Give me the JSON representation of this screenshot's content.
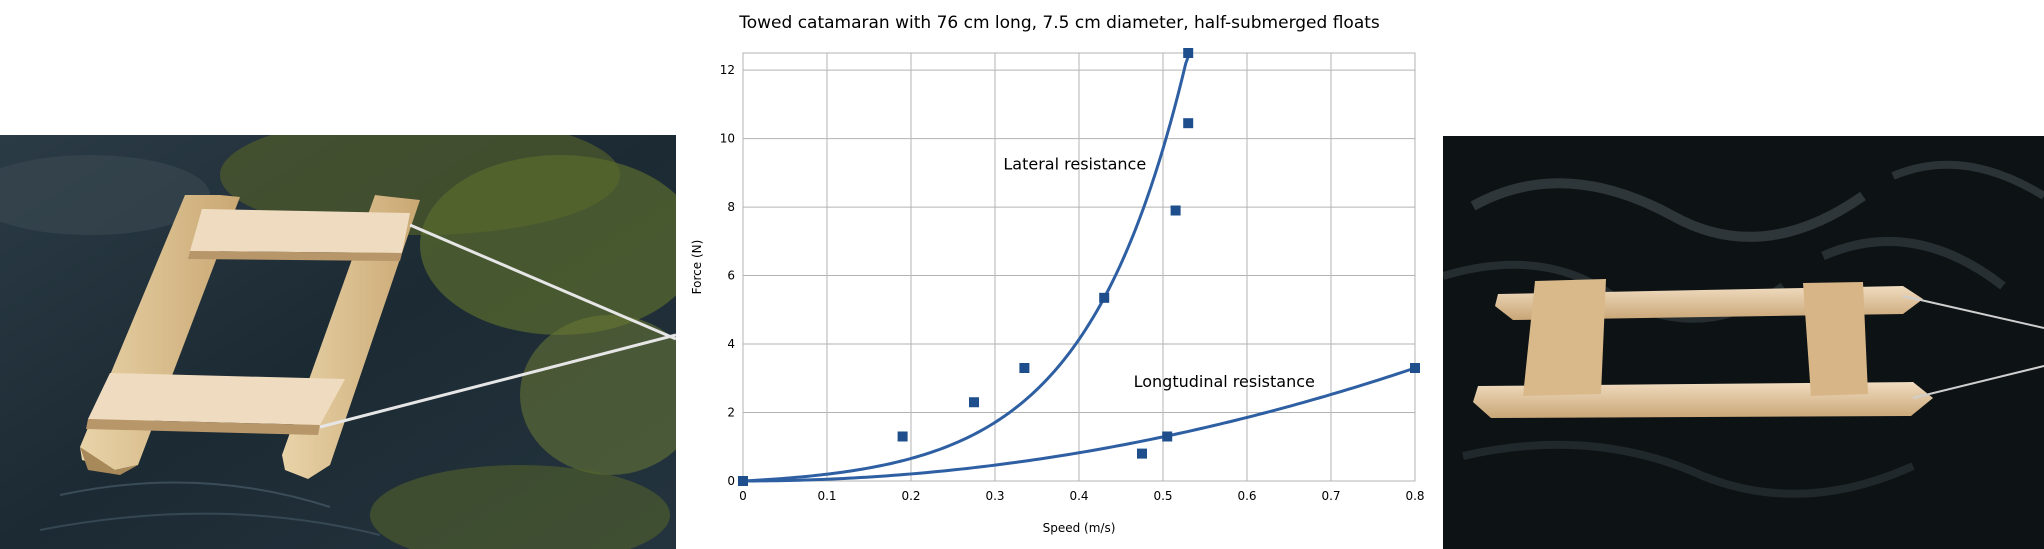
{
  "photos": {
    "left": "catamaran-photo-top-view",
    "right": "catamaran-photo-side-view"
  },
  "chart_data": {
    "type": "scatter",
    "title": "Towed catamaran with 76 cm long, 7.5 cm diameter, half-submerged floats",
    "xlabel": "Speed (m/s)",
    "ylabel": "Force (N)",
    "xlim": [
      0,
      0.8
    ],
    "ylim": [
      0,
      12.5
    ],
    "xticks": [
      "0",
      "0.1",
      "0.2",
      "0.3",
      "0.4",
      "0.5",
      "0.6",
      "0.7",
      "0.8"
    ],
    "yticks": [
      "0",
      "2",
      "4",
      "6",
      "8",
      "10",
      "12"
    ],
    "grid": true,
    "marker_color": "#1f4e8c",
    "line_color": "#2e5fa3",
    "series": [
      {
        "name": "Lateral resistance",
        "x": [
          0,
          0.19,
          0.275,
          0.335,
          0.43,
          0.515,
          0.53,
          0.53
        ],
        "y": [
          0,
          1.3,
          2.3,
          3.3,
          5.35,
          7.9,
          10.45,
          12.5
        ],
        "trend": "exponential",
        "trend_xmax": 0.55
      },
      {
        "name": "Longtudinal resistance",
        "x": [
          0,
          0.475,
          0.505,
          0.8
        ],
        "y": [
          0,
          0.8,
          1.3,
          3.3
        ],
        "trend": "power",
        "trend_xmax": 0.8
      }
    ]
  }
}
